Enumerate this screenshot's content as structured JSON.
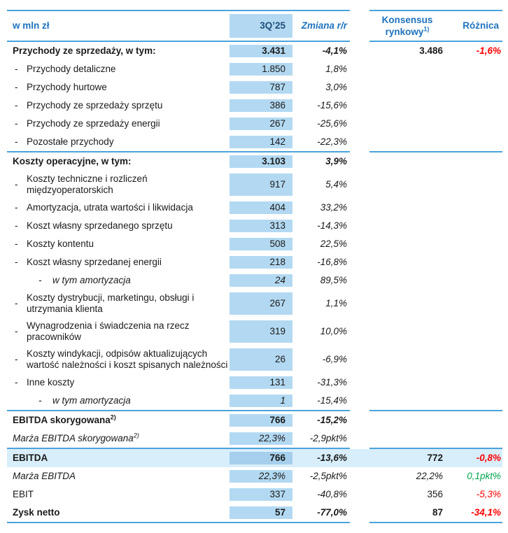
{
  "header": {
    "unit_label": "w mln zł",
    "period": "3Q’25",
    "change": "Zmiana r/r",
    "consensus_line1": "Konsensus",
    "consensus_line2": "rynkowy",
    "consensus_sup": "1)",
    "difference": "Różnica"
  },
  "colors": {
    "header_blue": "#1E73BE",
    "period_navy": "#1F4E79",
    "column_band_blue": "#B3D9F2",
    "highlight_row_blue": "#D8EEFB",
    "highlight_band_blue": "#A5CFEC",
    "separator_line_blue": "#4BA3DC",
    "negative_red": "#FF0000",
    "positive_green": "#00A651",
    "body_text": "#1a1a1a"
  },
  "table": {
    "rows": [
      {
        "label": "Przychody ze sprzedaży, w tym:",
        "indent": 0,
        "bold": true,
        "q": "3.431",
        "change": "-4,1%",
        "consensus": "3.486",
        "diff": "-1,6%",
        "diff_color": "red"
      },
      {
        "label": "Przychody detaliczne",
        "indent": 1,
        "q": "1.850",
        "change": "1,8%"
      },
      {
        "label": "Przychody hurtowe",
        "indent": 1,
        "q": "787",
        "change": "3,0%"
      },
      {
        "label": "Przychody ze sprzedaży sprzętu",
        "indent": 1,
        "q": "386",
        "change": "-15,6%"
      },
      {
        "label": "Przychody ze sprzedaży energii",
        "indent": 1,
        "q": "267",
        "change": "-25,6%"
      },
      {
        "label": "Pozostałe przychody",
        "indent": 1,
        "q": "142",
        "change": "-22,3%"
      },
      {
        "label": "Koszty operacyjne, w tym:",
        "indent": 0,
        "bold": true,
        "separator_above": true,
        "q": "3.103",
        "change": "3,9%"
      },
      {
        "label": "Koszty techniczne i rozliczeń międzyoperatorskich",
        "indent": 1,
        "q": "917",
        "change": "5,4%"
      },
      {
        "label": "Amortyzacja, utrata wartości i likwidacja",
        "indent": 1,
        "q": "404",
        "change": "33,2%"
      },
      {
        "label": "Koszt własny sprzedanego sprzętu",
        "indent": 1,
        "q": "313",
        "change": "-14,3%"
      },
      {
        "label": "Koszty kontentu",
        "indent": 1,
        "q": "508",
        "change": "22,5%"
      },
      {
        "label": "Koszt własny sprzedanej energii",
        "indent": 1,
        "q": "218",
        "change": "-16,8%"
      },
      {
        "label": "w tym amortyzacja",
        "indent": 2,
        "italic": true,
        "q": "24",
        "change": "89,5%"
      },
      {
        "label": "Koszty dystrybucji, marketingu, obsługi i utrzymania klienta",
        "indent": 1,
        "q": "267",
        "change": "1,1%"
      },
      {
        "label": "Wynagrodzenia i świadczenia na rzecz pracowników",
        "indent": 1,
        "q": "319",
        "change": "10,0%"
      },
      {
        "label": "Koszty windykacji, odpisów aktualizujących wartość należności i koszt spisanych należności",
        "indent": 1,
        "q": "26",
        "change": "-6,9%"
      },
      {
        "label": "Inne koszty",
        "indent": 1,
        "q": "131",
        "change": "-31,3%"
      },
      {
        "label": "w tym amortyzacja",
        "indent": 2,
        "italic": true,
        "q": "1",
        "change": "-15,4%"
      },
      {
        "label": "EBITDA skorygowana",
        "sup": "2)",
        "indent": 0,
        "bold": true,
        "separator_above": true,
        "q": "766",
        "change": "-15,2%"
      },
      {
        "label": "Marża EBITDA skorygowana",
        "sup": "2)",
        "indent": 0,
        "italic": true,
        "q": "22,3%",
        "change": "-2,9pkt%"
      },
      {
        "label": "EBITDA",
        "indent": 0,
        "bold": true,
        "separator_above": true,
        "highlight": true,
        "q": "766",
        "change": "-13,6%",
        "consensus": "772",
        "diff": "-0,8%",
        "diff_color": "red"
      },
      {
        "label": "Marża EBITDA",
        "indent": 0,
        "italic": true,
        "q": "22,3%",
        "change": "-2,5pkt%",
        "consensus": "22,2%",
        "diff": "0,1pkt%",
        "diff_color": "green"
      },
      {
        "label": "EBIT",
        "indent": 0,
        "q": "337",
        "change": "-40,8%",
        "consensus": "356",
        "diff": "-5,3%",
        "diff_color": "red"
      },
      {
        "label": "Zysk netto",
        "indent": 0,
        "bold": true,
        "q": "57",
        "change": "-77,0%",
        "consensus": "87",
        "diff": "-34,1%",
        "diff_color": "red"
      }
    ]
  }
}
